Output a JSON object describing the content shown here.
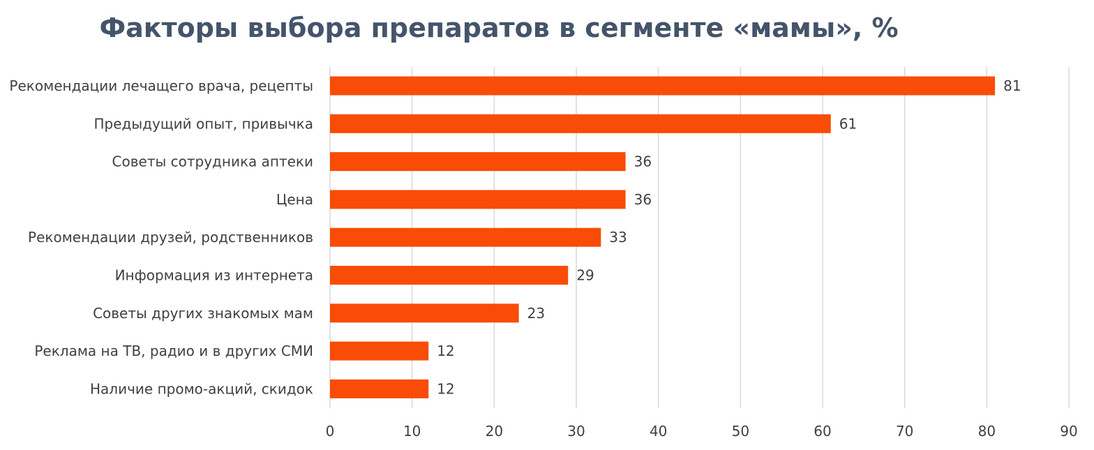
{
  "chart_data": {
    "type": "bar",
    "orientation": "horizontal",
    "title": "Факторы выбора препаратов в сегменте «мамы», %",
    "categories": [
      "Рекомендации лечащего врача, рецепты",
      "Предыдущий опыт, привычка",
      "Советы сотрудника аптеки",
      "Цена",
      "Рекомендации друзей, родственников",
      "Информация из интернета",
      "Советы других знакомых мам",
      "Реклама на ТВ, радио и в других СМИ",
      "Наличие промо-акций, скидок"
    ],
    "values": [
      81,
      61,
      36,
      36,
      33,
      29,
      23,
      12,
      12
    ],
    "xlim": [
      0,
      90
    ],
    "xticks": [
      0,
      10,
      20,
      30,
      40,
      50,
      60,
      70,
      80,
      90
    ],
    "grid": true,
    "legend": "none",
    "bar_color": "#f84c07",
    "grid_color": "#d9d9d9"
  }
}
